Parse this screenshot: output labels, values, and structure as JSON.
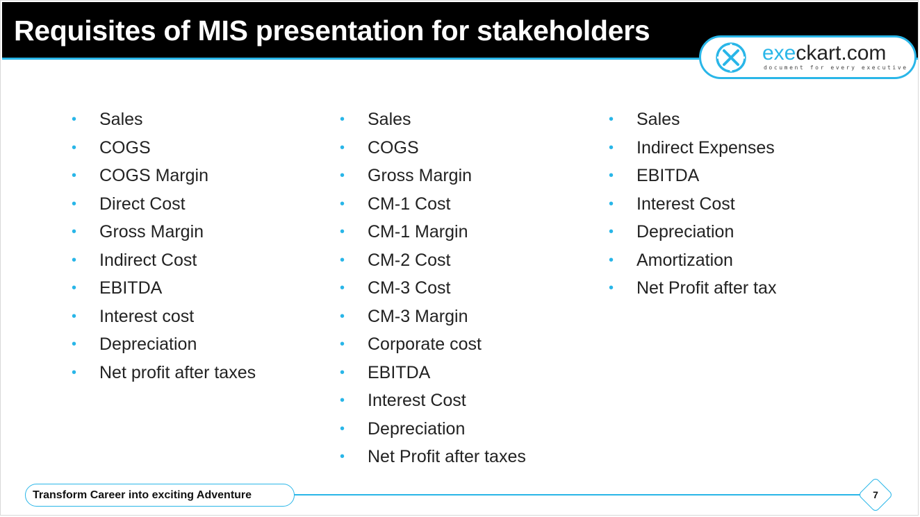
{
  "header": {
    "title": "Requisites of MIS presentation for stakeholders",
    "logo": {
      "brand_prefix": "exe",
      "brand_suffix": "ckart.com",
      "tagline": "document for every executive",
      "icon": "execkart-x-logo-icon"
    }
  },
  "columns": [
    {
      "items": [
        "Sales",
        "COGS",
        "COGS Margin",
        "Direct Cost",
        "Gross Margin",
        "Indirect Cost",
        "EBITDA",
        "Interest cost",
        "Depreciation",
        "Net profit after taxes"
      ]
    },
    {
      "items": [
        "Sales",
        "COGS",
        "Gross Margin",
        "CM-1 Cost",
        "CM-1 Margin",
        "CM-2 Cost",
        "CM-3 Cost",
        "CM-3 Margin",
        "Corporate cost",
        "EBITDA",
        "Interest Cost",
        "Depreciation",
        "Net Profit after taxes"
      ]
    },
    {
      "items": [
        "Sales",
        "Indirect Expenses",
        "EBITDA",
        "Interest Cost",
        "Depreciation",
        "Amortization",
        "Net Profit after tax"
      ]
    }
  ],
  "footer": {
    "tagline": "Transform Career into exciting Adventure",
    "page_number": "7"
  },
  "colors": {
    "accent": "#29b6e8",
    "title_bar": "#000000",
    "text": "#222222"
  }
}
